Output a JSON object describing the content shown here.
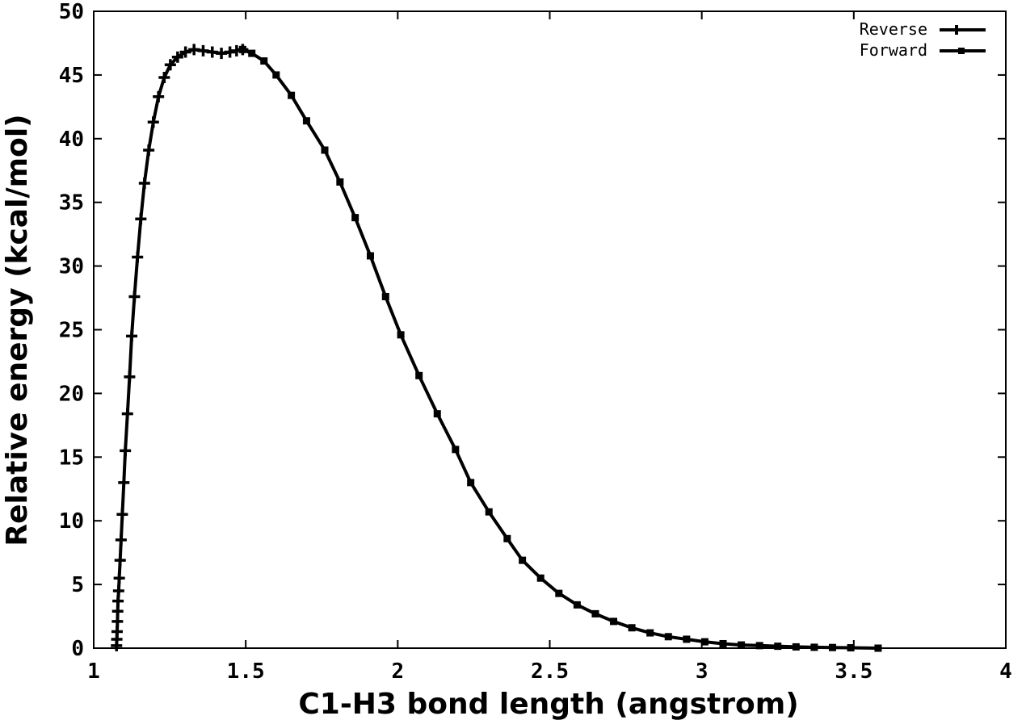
{
  "chart_data": {
    "type": "line",
    "xlabel": "C1-H3 bond length (angstrom)",
    "ylabel": "Relative energy (kcal/mol)",
    "xlim": [
      1,
      4
    ],
    "ylim": [
      0,
      50
    ],
    "xticks": [
      "1",
      "1.5",
      "2",
      "2.5",
      "3",
      "3.5",
      "4"
    ],
    "yticks": [
      "0",
      "5",
      "10",
      "15",
      "20",
      "25",
      "30",
      "35",
      "40",
      "45",
      "50"
    ],
    "grid": false,
    "legend_position": "top-right",
    "line_color": "#000000",
    "series": [
      {
        "name": "Reverse",
        "marker": "plus",
        "x": [
          1.075,
          1.076,
          1.077,
          1.078,
          1.079,
          1.08,
          1.082,
          1.084,
          1.087,
          1.09,
          1.094,
          1.099,
          1.104,
          1.111,
          1.118,
          1.125,
          1.134,
          1.144,
          1.155,
          1.167,
          1.181,
          1.196,
          1.213,
          1.232,
          1.252,
          1.276,
          1.302,
          1.33,
          1.36,
          1.39,
          1.42,
          1.448,
          1.47,
          1.49
        ],
        "y": [
          0.2,
          0.7,
          1.3,
          2.1,
          2.9,
          3.7,
          4.5,
          5.5,
          6.9,
          8.5,
          10.5,
          13.0,
          15.5,
          18.4,
          21.3,
          24.5,
          27.6,
          30.7,
          33.7,
          36.5,
          39.1,
          41.3,
          43.3,
          44.8,
          45.8,
          46.4,
          46.8,
          47.0,
          46.9,
          46.8,
          46.7,
          46.8,
          46.9,
          47.0
        ]
      },
      {
        "name": "Forward",
        "marker": "square",
        "x": [
          1.49,
          1.52,
          1.56,
          1.6,
          1.65,
          1.7,
          1.76,
          1.81,
          1.86,
          1.91,
          1.96,
          2.01,
          2.07,
          2.13,
          2.19,
          2.24,
          2.3,
          2.36,
          2.41,
          2.47,
          2.53,
          2.59,
          2.65,
          2.71,
          2.77,
          2.83,
          2.89,
          2.95,
          3.01,
          3.07,
          3.13,
          3.19,
          3.25,
          3.31,
          3.37,
          3.43,
          3.49,
          3.58
        ],
        "y": [
          47.0,
          46.7,
          46.1,
          45.0,
          43.4,
          41.4,
          39.1,
          36.6,
          33.8,
          30.8,
          27.6,
          24.6,
          21.4,
          18.4,
          15.6,
          13.0,
          10.7,
          8.6,
          6.9,
          5.5,
          4.3,
          3.4,
          2.7,
          2.1,
          1.6,
          1.2,
          0.9,
          0.7,
          0.5,
          0.35,
          0.25,
          0.2,
          0.15,
          0.1,
          0.07,
          0.05,
          0.03,
          0.0
        ]
      }
    ]
  }
}
